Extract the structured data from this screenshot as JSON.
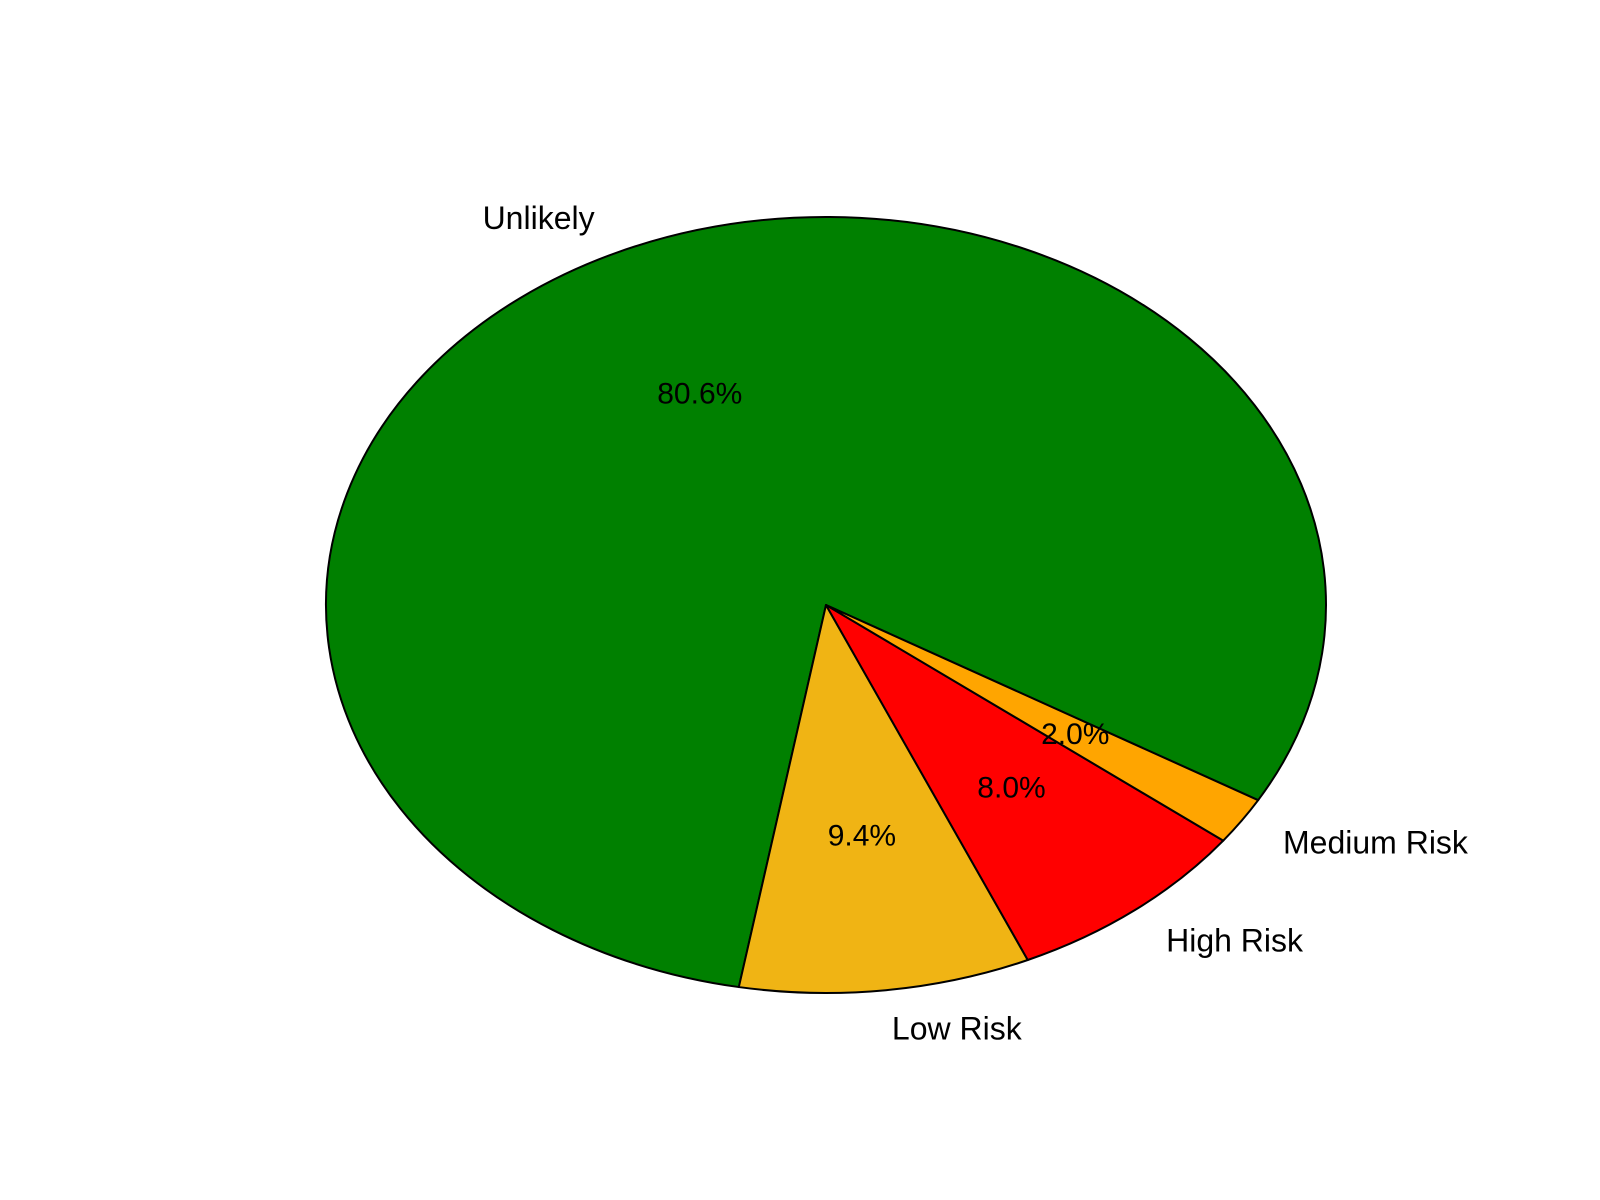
{
  "chart_data": {
    "type": "pie",
    "title": "",
    "slices": [
      {
        "label": "Unlikely",
        "value": 80.6,
        "pct_label": "80.6%",
        "color": "#008000"
      },
      {
        "label": "Low Risk",
        "value": 9.4,
        "pct_label": "9.4%",
        "color": "#F0B414"
      },
      {
        "label": "High Risk",
        "value": 8.0,
        "pct_label": "8.0%",
        "color": "#FF0000"
      },
      {
        "label": "Medium Risk",
        "value": 2.0,
        "pct_label": "2.0%",
        "color": "#FFA500"
      }
    ],
    "start_angle_deg": -30.2,
    "direction": "counterclockwise",
    "legend": "none",
    "edge_color": "#000000"
  }
}
